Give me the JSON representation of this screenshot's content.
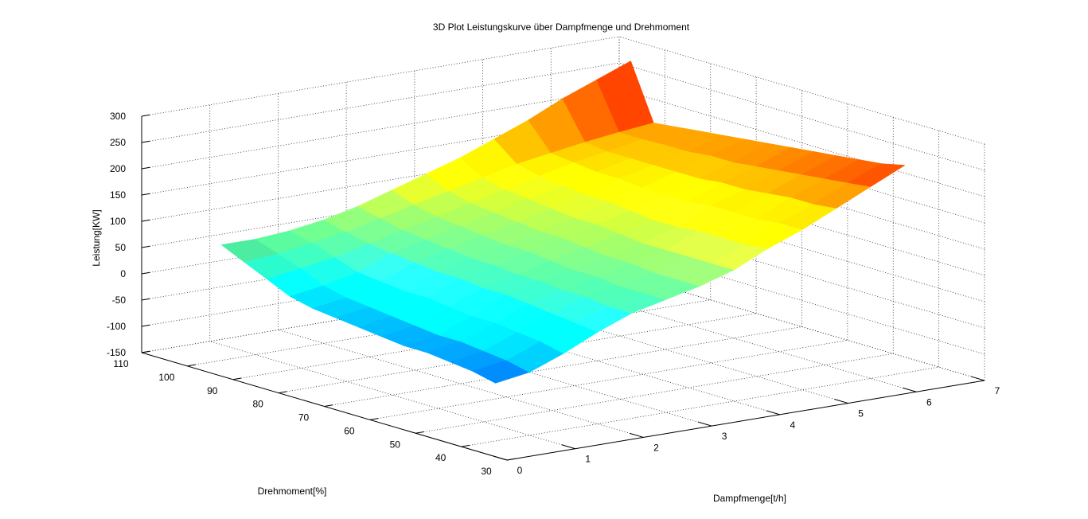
{
  "chart_data": {
    "type": "surface3d",
    "title": "3D Plot Leistungskurve über Dampfmenge und Drehmoment",
    "xlabel": "Dampfmenge[t/h]",
    "ylabel": "Drehmoment[%]",
    "zlabel": "Leistung[KW]",
    "xlim": [
      0,
      7
    ],
    "ylim": [
      30,
      110
    ],
    "zlim": [
      -150,
      300
    ],
    "x_ticks": [
      "0",
      "1",
      "2",
      "3",
      "4",
      "5",
      "6",
      "7"
    ],
    "y_ticks": [
      "30",
      "40",
      "50",
      "60",
      "70",
      "80",
      "90",
      "100",
      "110"
    ],
    "z_ticks": [
      "-150",
      "-100",
      "-50",
      "0",
      "50",
      "100",
      "150",
      "200",
      "250",
      "300"
    ],
    "grid": true,
    "colormap": "jet",
    "shading": "interp with lighting",
    "surface": {
      "x": [
        0.5,
        1,
        1.5,
        2,
        2.5,
        3,
        3.5,
        4,
        4.5,
        5,
        5.5,
        6,
        6.5
      ],
      "y": [
        40,
        45,
        50,
        55,
        60,
        65,
        70,
        75,
        80,
        85,
        90,
        95,
        100
      ],
      "z": [
        [
          -40,
          -30,
          -5,
          25,
          50,
          65,
          80,
          100,
          130,
          155,
          185,
          215,
          245
        ],
        [
          -30,
          -20,
          5,
          30,
          50,
          65,
          80,
          100,
          125,
          155,
          180,
          210,
          235
        ],
        [
          -25,
          -15,
          10,
          35,
          55,
          65,
          80,
          100,
          125,
          150,
          180,
          205,
          230
        ],
        [
          -20,
          -10,
          15,
          40,
          55,
          70,
          85,
          100,
          125,
          150,
          175,
          200,
          225
        ],
        [
          -20,
          -10,
          15,
          45,
          60,
          70,
          85,
          100,
          120,
          150,
          170,
          195,
          220
        ],
        [
          -15,
          -5,
          20,
          45,
          60,
          75,
          90,
          105,
          120,
          145,
          170,
          190,
          215
        ],
        [
          -10,
          0,
          25,
          50,
          65,
          80,
          95,
          110,
          125,
          145,
          165,
          185,
          210
        ],
        [
          -5,
          5,
          25,
          50,
          65,
          80,
          95,
          110,
          130,
          145,
          165,
          185,
          205
        ],
        [
          0,
          10,
          30,
          55,
          70,
          85,
          100,
          115,
          130,
          150,
          165,
          180,
          200
        ],
        [
          10,
          20,
          35,
          60,
          75,
          90,
          105,
          120,
          135,
          150,
          165,
          180,
          195
        ],
        [
          30,
          40,
          50,
          65,
          80,
          95,
          110,
          125,
          140,
          155,
          165,
          178,
          190
        ],
        [
          50,
          55,
          65,
          75,
          90,
          105,
          120,
          135,
          150,
          160,
          170,
          178,
          185
        ],
        [
          70,
          70,
          75,
          85,
          100,
          120,
          140,
          160,
          185,
          210,
          240,
          265,
          290
        ]
      ]
    }
  }
}
